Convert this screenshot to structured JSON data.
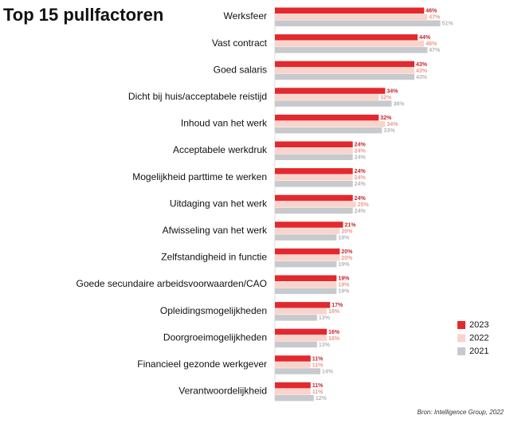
{
  "chart_data": {
    "type": "bar",
    "orientation": "horizontal",
    "title": "Top 15 pullfactoren",
    "source": "Bron: Intelligence Group, 2022",
    "categories": [
      "Werksfeer",
      "Vast contract",
      "Goed salaris",
      "Dicht bij huis/acceptabele reistijd",
      "Inhoud van het werk",
      "Acceptabele werkdruk",
      "Mogelijkheid parttime te werken",
      "Uitdaging van het werk",
      "Afwisseling van het werk",
      "Zelfstandigheid in functie",
      "Goede secundaire arbeidsvoorwaarden/CAO",
      "Opleidingsmogelijkheden",
      "Doorgroeimogelijkheden",
      "Financieel gezonde werkgever",
      "Verantwoordelijkheid"
    ],
    "series": [
      {
        "name": "2023",
        "color": "#e3282e",
        "label_color": "#c8262b",
        "values": [
          46,
          44,
          43,
          34,
          32,
          24,
          24,
          24,
          21,
          20,
          19,
          17,
          16,
          11,
          11
        ],
        "value_labels": [
          "46%",
          "44%",
          "43%",
          "34%",
          "32%",
          "24%",
          "24%",
          "24%",
          "21%",
          "20%",
          "19%",
          "17%",
          "16%",
          "11%",
          "11%"
        ]
      },
      {
        "name": "2022",
        "color": "#f9d4cc",
        "label_color": "#ee9a8e",
        "values": [
          47,
          46,
          43,
          32,
          34,
          24,
          24,
          25,
          20,
          20,
          19,
          16,
          16,
          11,
          11
        ],
        "value_labels": [
          "47%",
          "46%",
          "43%",
          "32%",
          "34%",
          "24%",
          "24%",
          "25%",
          "20%",
          "20%",
          "19%",
          "16%",
          "16%",
          "11%",
          "11%"
        ]
      },
      {
        "name": "2021",
        "color": "#c8c9cc",
        "label_color": "#b4b5b8",
        "values": [
          51,
          47,
          43,
          36,
          33,
          24,
          24,
          24,
          19,
          19,
          19,
          13,
          13,
          14,
          12
        ],
        "value_labels": [
          "51%",
          "47%",
          "43%",
          "36%",
          "33%",
          "24%",
          "24%",
          "24%",
          "19%",
          "19%",
          "19%",
          "13%",
          "13%",
          "14%",
          "12%"
        ]
      }
    ],
    "legend": "bottom-right"
  }
}
